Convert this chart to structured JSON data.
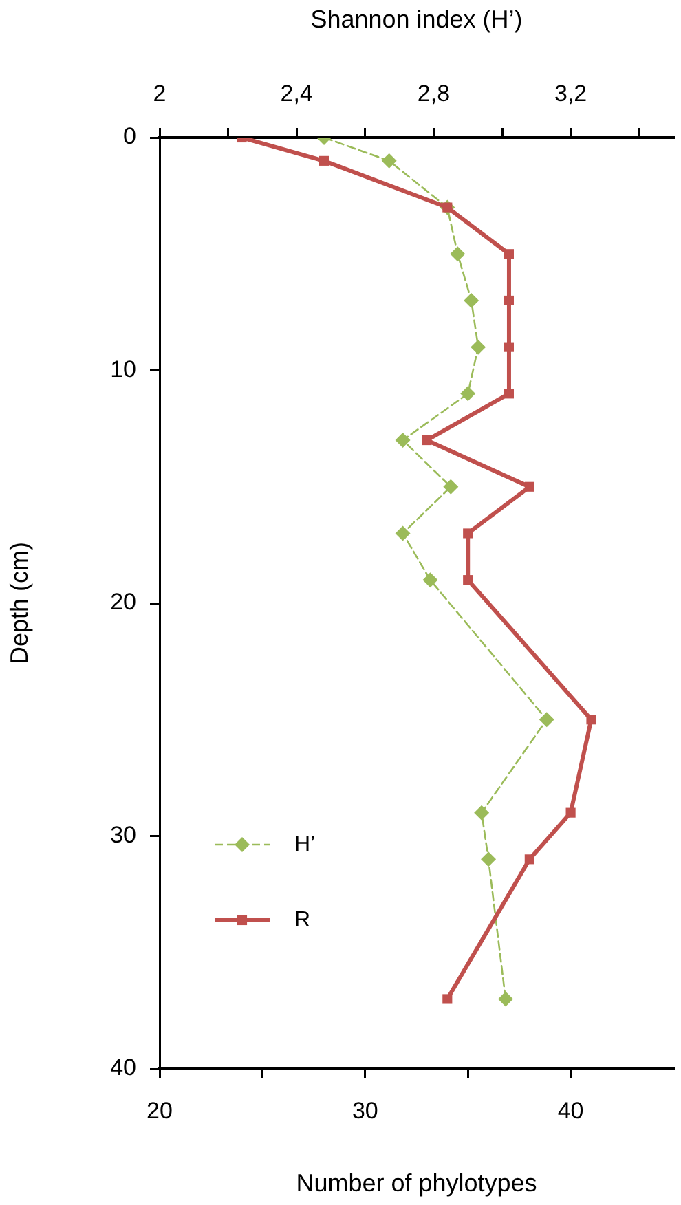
{
  "chart_data": {
    "type": "line",
    "orientation": "horizontal",
    "xlabel": "Number of phylotypes",
    "x2label": "Shannon index (H’)",
    "ylabel": "Depth (cm)",
    "x": [
      0,
      1,
      3,
      5,
      7,
      9,
      11,
      13,
      15,
      17,
      19,
      25,
      29,
      31,
      37
    ],
    "series": [
      {
        "name": "H’",
        "color": "#9bbb59",
        "axis": "x2",
        "marker": "diamond",
        "line_style": "dashed",
        "values": [
          2.48,
          2.67,
          2.84,
          2.87,
          2.91,
          2.93,
          2.9,
          2.71,
          2.85,
          2.71,
          2.79,
          3.13,
          2.94,
          2.96,
          3.01
        ]
      },
      {
        "name": "R",
        "color": "#c0504d",
        "marker": "square",
        "line_style": "solid",
        "values": [
          24,
          28,
          34,
          37,
          37,
          37,
          37,
          33,
          38,
          35,
          35,
          41,
          40,
          38,
          34
        ]
      }
    ],
    "xlim": [
      20,
      45
    ],
    "xticks": [
      20,
      {
        "value": 25,
        "label": null
      },
      30,
      {
        "value": 35,
        "label": null
      },
      40
    ],
    "x2lim": [
      2,
      3.5
    ],
    "x2ticks": [
      2,
      {
        "value": 2.2,
        "label": null
      },
      {
        "value": 2.4,
        "label": "2,4"
      },
      {
        "value": 2.6,
        "label": null
      },
      {
        "value": 2.8,
        "label": "2,8"
      },
      {
        "value": 3.0,
        "label": null
      },
      {
        "value": 3.2,
        "label": "3,2"
      },
      {
        "value": 3.4,
        "label": null
      }
    ],
    "ylim": [
      40,
      0
    ],
    "yticks": [
      0,
      10,
      20,
      30,
      40
    ],
    "grid": false,
    "legend": "bottom left"
  }
}
